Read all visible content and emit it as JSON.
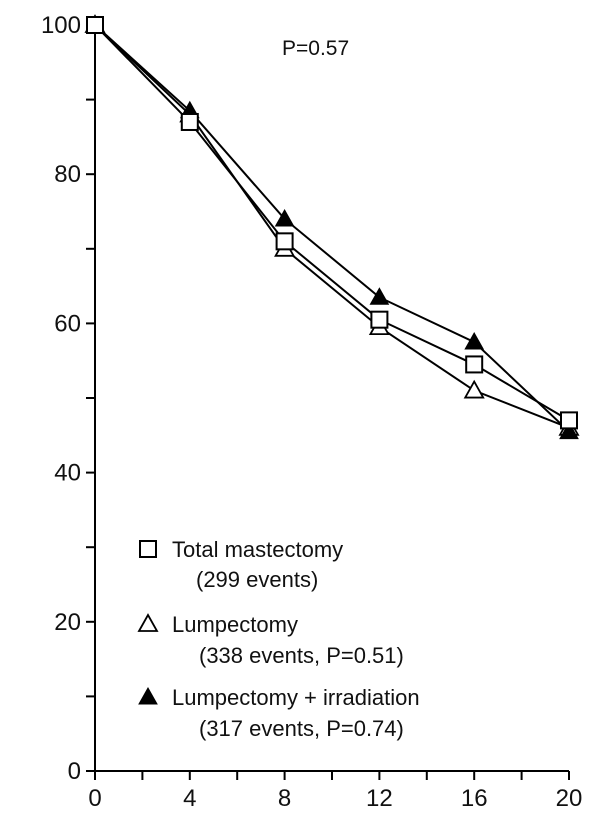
{
  "chart_data": {
    "type": "line",
    "title": "",
    "xlabel": "",
    "ylabel": "",
    "x": [
      0,
      4,
      8,
      12,
      16,
      20
    ],
    "xlim": [
      0,
      20
    ],
    "ylim": [
      0,
      100
    ],
    "x_ticks": [
      "0",
      "4",
      "8",
      "12",
      "16",
      "20"
    ],
    "y_ticks": [
      "0",
      "20",
      "40",
      "60",
      "80",
      "100"
    ],
    "grid": false,
    "annotation": "P=0.57",
    "legend_placement": "bottom-left",
    "series": [
      {
        "name": "Total mastectomy",
        "detail": "(299 events)",
        "marker": "open-square",
        "values": [
          100,
          87,
          71,
          60.5,
          54.5,
          47
        ]
      },
      {
        "name": "Lumpectomy",
        "detail": "(338 events, P=0.51)",
        "marker": "open-triangle",
        "values": [
          100,
          88,
          70,
          59.5,
          51,
          46
        ]
      },
      {
        "name": "Lumpectomy + irradiation",
        "detail": "(317 events, P=0.74)",
        "marker": "filled-triangle",
        "values": [
          100,
          88.5,
          74,
          63.5,
          57.5,
          45.5
        ]
      }
    ]
  }
}
